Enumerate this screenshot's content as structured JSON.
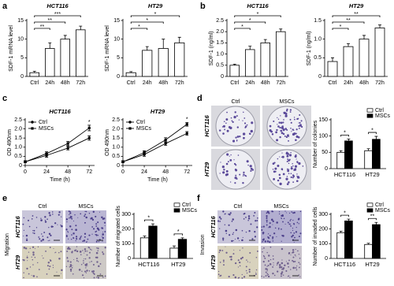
{
  "panel_letters": [
    "a",
    "b",
    "c",
    "d",
    "e",
    "f"
  ],
  "chart_data": [
    {
      "type": "bar",
      "title": "HCT116",
      "ylabel": "SDF-1 mRNA level",
      "categories": [
        "Ctrl",
        "24h",
        "48h",
        "72h"
      ],
      "values": [
        1,
        7.5,
        10,
        12.5
      ],
      "errors": [
        0.4,
        1.5,
        1,
        1
      ],
      "color": "#ffffff",
      "ylim": [
        0,
        15
      ],
      "yticks": [
        0,
        5,
        10,
        15
      ],
      "annotations": [
        "**",
        "**",
        "***"
      ]
    },
    {
      "type": "bar",
      "title": "HT29",
      "ylabel": "SDF-1 mRNA level",
      "categories": [
        "Ctrl",
        "24h",
        "48h",
        "72h"
      ],
      "values": [
        1,
        7,
        7.5,
        9
      ],
      "errors": [
        0.3,
        1,
        2.5,
        1.5
      ],
      "color": "#ffffff",
      "ylim": [
        0,
        15
      ],
      "yticks": [
        0,
        5,
        10,
        15
      ],
      "annotations": [
        "*",
        "*",
        "*"
      ]
    },
    {
      "type": "bar",
      "title": "HCT116",
      "ylabel": "SDF-1 (ng/ml)",
      "categories": [
        "Ctrl",
        "24h",
        "48h",
        "72h"
      ],
      "values": [
        0.5,
        1.2,
        1.5,
        2.0
      ],
      "errors": [
        0.05,
        0.15,
        0.15,
        0.12
      ],
      "color": "#ffffff",
      "ylim": [
        0,
        2.5
      ],
      "yticks": [
        0,
        0.5,
        {
          "value": 1,
          "label": "1.0"
        },
        1.5,
        {
          "value": 2,
          "label": "2.0"
        },
        2.5
      ],
      "annotations": [
        "*",
        "*",
        "*"
      ]
    },
    {
      "type": "bar",
      "title": "HT29",
      "ylabel": "SDF-1 (ng/ml)",
      "categories": [
        "Ctrl",
        "24h",
        "48h",
        "72h"
      ],
      "values": [
        0.4,
        0.8,
        1.0,
        1.3
      ],
      "errors": [
        0.1,
        0.08,
        0.1,
        0.08
      ],
      "color": "#ffffff",
      "ylim": [
        0,
        1.5
      ],
      "yticks": [
        0,
        0.5,
        {
          "value": 1,
          "label": "1.0"
        },
        1.5
      ],
      "annotations": [
        "*",
        "**",
        "**"
      ]
    },
    {
      "type": "line",
      "title": "HCT116",
      "xlabel": "Time (h)",
      "ylabel": "OD 490nm",
      "x": [
        0,
        24,
        48,
        72
      ],
      "xlim": [
        0,
        78
      ],
      "xticks": [
        0,
        24,
        48,
        72
      ],
      "ylim": [
        0,
        2.5
      ],
      "yticks": [
        0,
        0.5,
        {
          "value": 1,
          "label": "1.0"
        },
        1.5,
        {
          "value": 2,
          "label": "2.0"
        },
        2.5
      ],
      "legend": "top-left",
      "series": [
        {
          "name": "Ctrl",
          "color": "#000000",
          "marker": "circle",
          "values": [
            0.2,
            0.55,
            0.95,
            1.5
          ],
          "errors": [
            0.05,
            0.1,
            0.1,
            0.12
          ]
        },
        {
          "name": "MSCs",
          "color": "#000000",
          "marker": "square",
          "values": [
            0.2,
            0.65,
            1.2,
            2.05
          ],
          "errors": [
            0.05,
            0.1,
            0.12,
            0.15
          ]
        }
      ],
      "annotations": [
        "*"
      ]
    },
    {
      "type": "line",
      "title": "HT29",
      "xlabel": "Time (h)",
      "ylabel": "OD 490nm",
      "x": [
        0,
        24,
        48,
        72
      ],
      "xlim": [
        0,
        78
      ],
      "xticks": [
        0,
        24,
        48,
        72
      ],
      "ylim": [
        0,
        2.5
      ],
      "yticks": [
        0,
        0.5,
        {
          "value": 1,
          "label": "1.0"
        },
        1.5,
        {
          "value": 2,
          "label": "2.0"
        },
        2.5
      ],
      "legend": "top-left",
      "series": [
        {
          "name": "Ctrl",
          "color": "#000000",
          "marker": "circle",
          "values": [
            0.2,
            0.6,
            1.2,
            1.75
          ],
          "errors": [
            0.05,
            0.1,
            0.1,
            0.1
          ]
        },
        {
          "name": "MSCs",
          "color": "#000000",
          "marker": "square",
          "values": [
            0.2,
            0.7,
            1.4,
            2.25
          ],
          "errors": [
            0.05,
            0.1,
            0.12,
            0.1
          ]
        }
      ],
      "annotations": [
        "*"
      ]
    },
    {
      "type": "grouped_bar",
      "ylabel": "Number of colonies",
      "categories": [
        "HCT116",
        "HT29"
      ],
      "ylim": [
        0,
        150
      ],
      "yticks": [
        0,
        50,
        100,
        150
      ],
      "legend": "top-right",
      "series": [
        {
          "name": "Ctrl",
          "color": "#ffffff",
          "values": [
            50,
            55
          ],
          "errors": [
            5,
            6
          ]
        },
        {
          "name": "MSCs",
          "color": "#000000",
          "values": [
            85,
            90
          ],
          "errors": [
            6,
            9
          ]
        }
      ],
      "annotations": [
        "*",
        "*"
      ]
    },
    {
      "type": "grouped_bar",
      "ylabel": "Number of migrated cells",
      "categories": [
        "HCT116",
        "HT29"
      ],
      "ylim": [
        0,
        300
      ],
      "yticks": [
        0,
        100,
        200,
        300
      ],
      "legend": "top-right",
      "series": [
        {
          "name": "Ctrl",
          "color": "#ffffff",
          "values": [
            140,
            70
          ],
          "errors": [
            12,
            15
          ]
        },
        {
          "name": "MSCs",
          "color": "#000000",
          "values": [
            220,
            130
          ],
          "errors": [
            15,
            10
          ]
        }
      ],
      "annotations": [
        "*",
        "*"
      ]
    },
    {
      "type": "grouped_bar",
      "ylabel": "Number of invaded  cells",
      "categories": [
        "HCT116",
        "HT29"
      ],
      "ylim": [
        0,
        300
      ],
      "yticks": [
        0,
        100,
        200,
        300
      ],
      "legend": "top-right",
      "series": [
        {
          "name": "Ctrl",
          "color": "#ffffff",
          "values": [
            175,
            95
          ],
          "errors": [
            10,
            8
          ]
        },
        {
          "name": "MSCs",
          "color": "#000000",
          "values": [
            255,
            230
          ],
          "errors": [
            12,
            15
          ]
        }
      ],
      "annotations": [
        "*",
        "**"
      ]
    }
  ],
  "image_panels": [
    {
      "columns": [
        "Ctrl",
        "MSCs"
      ],
      "rows": [
        "HCT116",
        "HT29"
      ]
    },
    {
      "side_label": "Migration",
      "columns": [
        "Ctrl",
        "MSCs"
      ],
      "rows": [
        "HCT116",
        "HT29"
      ]
    },
    {
      "side_label": "Invasion",
      "columns": [
        "Ctrl",
        "MSCs"
      ],
      "rows": [
        "HCT116",
        "HT29"
      ]
    }
  ]
}
